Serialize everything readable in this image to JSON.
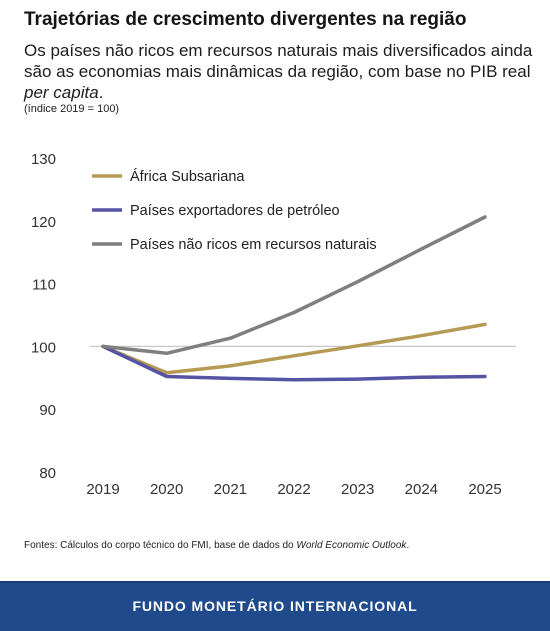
{
  "header": {
    "title": "Trajetórias de crescimento divergentes na região",
    "subtitle_text": "Os países não ricos em recursos naturais mais diversificados ainda são as economias mais dinâmicas da região, com base no PIB real ",
    "subtitle_italic": "per capita",
    "subtitle_end": ".",
    "note": "(índice 2019 = 100)"
  },
  "source": {
    "prefix": "Fontes: Cálculos do corpo técnico do FMI, base de dados do ",
    "italic": "World Economic Outlook",
    "suffix": "."
  },
  "footer": {
    "label": "FUNDO MONETÁRIO INTERNACIONAL"
  },
  "chart_data": {
    "type": "line",
    "x": [
      2019,
      2020,
      2021,
      2022,
      2023,
      2024,
      2025
    ],
    "ylim": [
      80,
      130
    ],
    "yticks": [
      80,
      90,
      100,
      110,
      120,
      130
    ],
    "reference_line": 100,
    "grid": false,
    "legend_position": "top-left",
    "series": [
      {
        "name": "África Subsariana",
        "color": "#b59a54",
        "values": [
          100,
          95.8,
          96.9,
          98.5,
          100.1,
          101.7,
          103.5
        ]
      },
      {
        "name": "Países exportadores de petróleo",
        "color": "#5553a4",
        "values": [
          100,
          95.2,
          94.9,
          94.7,
          94.8,
          95.1,
          95.2
        ]
      },
      {
        "name": "Países não ricos em recursos naturais",
        "color": "#7f7f7f",
        "values": [
          100,
          98.9,
          101.3,
          105.4,
          110.3,
          115.5,
          120.6
        ]
      }
    ]
  }
}
